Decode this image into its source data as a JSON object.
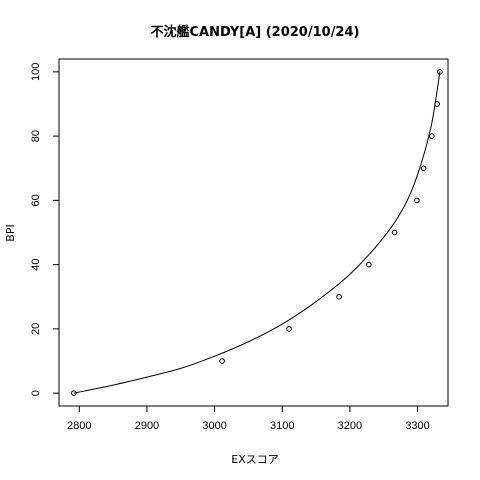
{
  "chart_data": {
    "type": "scatter",
    "title": "不沈艦CANDY[A] (2020/10/24)",
    "xlabel": "EXスコア",
    "ylabel": "BPI",
    "xlim": [
      2770,
      3345
    ],
    "ylim": [
      -4,
      104
    ],
    "x_ticks": [
      2800,
      2900,
      3000,
      3100,
      3200,
      3300
    ],
    "y_ticks": [
      0,
      20,
      40,
      60,
      80,
      100
    ],
    "grid": false,
    "legend": "none",
    "points": [
      {
        "x": 2792,
        "y": 0
      },
      {
        "x": 3011,
        "y": 10
      },
      {
        "x": 3110,
        "y": 20
      },
      {
        "x": 3184,
        "y": 30
      },
      {
        "x": 3228,
        "y": 40
      },
      {
        "x": 3266,
        "y": 50
      },
      {
        "x": 3299,
        "y": 60
      },
      {
        "x": 3309,
        "y": 70
      },
      {
        "x": 3321,
        "y": 80
      },
      {
        "x": 3329,
        "y": 90
      },
      {
        "x": 3333,
        "y": 100
      }
    ],
    "curve": [
      {
        "x": 2792,
        "y": 0
      },
      {
        "x": 2850,
        "y": 2.5
      },
      {
        "x": 2900,
        "y": 5
      },
      {
        "x": 2950,
        "y": 7.7
      },
      {
        "x": 3000,
        "y": 11.5
      },
      {
        "x": 3050,
        "y": 16
      },
      {
        "x": 3100,
        "y": 21.5
      },
      {
        "x": 3150,
        "y": 28.5
      },
      {
        "x": 3200,
        "y": 37
      },
      {
        "x": 3250,
        "y": 48.5
      },
      {
        "x": 3280,
        "y": 58
      },
      {
        "x": 3300,
        "y": 68
      },
      {
        "x": 3320,
        "y": 83
      },
      {
        "x": 3333,
        "y": 100
      }
    ]
  }
}
